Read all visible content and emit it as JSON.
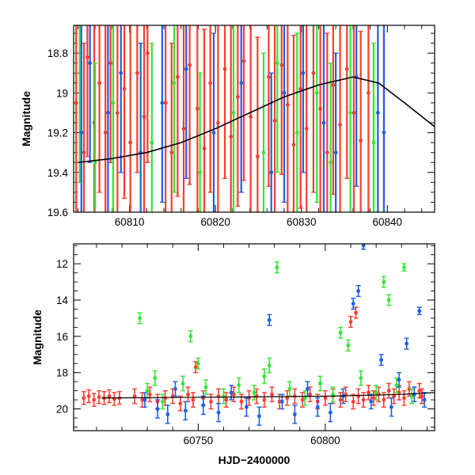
{
  "colors": {
    "red": "#ff3b2f",
    "green": "#33e633",
    "blue": "#1a5fe8",
    "model": "#000000"
  },
  "chart_data": [
    {
      "id": "top",
      "type": "scatter",
      "title": "",
      "xlabel": "",
      "ylabel": "Magnitude",
      "xlim": [
        60803.5,
        60845.5
      ],
      "ylim": [
        19.6,
        18.66
      ],
      "y_inverted": true,
      "grid": false,
      "x_ticks": [
        60810,
        60820,
        60830,
        60840
      ],
      "x_tick_labels": [
        "60810",
        "60820",
        "60830",
        "60840"
      ],
      "y_ticks": [
        18.8,
        19.0,
        19.2,
        19.4,
        19.6
      ],
      "y_tick_labels": [
        "18.8",
        "19",
        "19.2",
        "19.4",
        "19.6"
      ],
      "series": [
        {
          "color": "red",
          "points": [
            [
              60803.8,
              19.05,
              0.6
            ],
            [
              60804.7,
              19.3,
              0.55
            ],
            [
              60805.1,
              18.82,
              0.5
            ],
            [
              60805.9,
              19.15,
              0.6
            ],
            [
              60806.5,
              18.95,
              0.55
            ],
            [
              60807.2,
              19.2,
              0.6
            ],
            [
              60807.8,
              18.85,
              0.5
            ],
            [
              60808.6,
              19.1,
              0.6
            ],
            [
              60809.4,
              18.98,
              0.55
            ],
            [
              60810.1,
              19.25,
              0.6
            ],
            [
              60810.9,
              18.9,
              0.5
            ],
            [
              60811.7,
              19.12,
              0.6
            ],
            [
              60812.1,
              18.8,
              0.55
            ],
            [
              60814.2,
              19.05,
              0.6
            ],
            [
              60814.9,
              19.3,
              0.55
            ],
            [
              60815.6,
              18.92,
              0.6
            ],
            [
              60816.3,
              19.18,
              0.55
            ],
            [
              60817.0,
              18.86,
              0.6
            ],
            [
              60817.9,
              19.08,
              0.55
            ],
            [
              60818.7,
              19.28,
              0.6
            ],
            [
              60819.4,
              18.95,
              0.55
            ],
            [
              60820.3,
              19.15,
              0.6
            ],
            [
              60821.1,
              18.88,
              0.55
            ],
            [
              60821.8,
              19.22,
              0.6
            ],
            [
              60822.6,
              19.02,
              0.55
            ],
            [
              60823.3,
              18.84,
              0.6
            ],
            [
              60824.1,
              19.12,
              0.55
            ],
            [
              60824.9,
              19.32,
              0.6
            ],
            [
              60826.2,
              18.92,
              0.55
            ],
            [
              60826.9,
              19.14,
              0.6
            ],
            [
              60827.7,
              18.86,
              0.55
            ],
            [
              60828.4,
              19.06,
              0.6
            ],
            [
              60829.1,
              19.26,
              0.55
            ],
            [
              60829.9,
              18.98,
              0.6
            ],
            [
              60830.6,
              19.18,
              0.55
            ],
            [
              60831.4,
              18.9,
              0.6
            ],
            [
              60832.2,
              19.08,
              0.55
            ],
            [
              60833.0,
              19.3,
              0.6
            ],
            [
              60833.7,
              18.96,
              0.55
            ],
            [
              60834.5,
              19.16,
              0.6
            ],
            [
              60835.3,
              18.88,
              0.55
            ],
            [
              60836.1,
              19.1,
              0.6
            ],
            [
              60836.9,
              19.24,
              0.55
            ],
            [
              60837.8,
              19.0,
              0.6
            ]
          ]
        },
        {
          "color": "green",
          "points": [
            [
              60804.2,
              18.9,
              0.55
            ],
            [
              60806.0,
              19.35,
              0.5
            ],
            [
              60808.1,
              19.05,
              0.55
            ],
            [
              60812.6,
              19.25,
              0.5
            ],
            [
              60815.2,
              18.95,
              0.55
            ],
            [
              60818.2,
              19.4,
              0.5
            ],
            [
              60822.1,
              19.1,
              0.55
            ],
            [
              60825.6,
              19.3,
              0.5
            ],
            [
              60827.2,
              18.85,
              0.55
            ],
            [
              60829.5,
              19.2,
              0.5
            ],
            [
              60831.8,
              19.0,
              0.55
            ],
            [
              60833.4,
              19.35,
              0.5
            ],
            [
              60835.7,
              19.1,
              0.55
            ],
            [
              60838.4,
              19.25,
              0.5
            ]
          ]
        },
        {
          "color": "blue",
          "points": [
            [
              60804.4,
              19.2,
              0.55
            ],
            [
              60805.4,
              18.85,
              0.5
            ],
            [
              60807.5,
              19.1,
              0.55
            ],
            [
              60809.0,
              18.9,
              0.5
            ],
            [
              60811.3,
              19.3,
              0.55
            ],
            [
              60813.8,
              19.05,
              0.5
            ],
            [
              60816.6,
              18.88,
              0.55
            ],
            [
              60819.8,
              19.2,
              0.5
            ],
            [
              60823.0,
              18.95,
              0.55
            ],
            [
              60826.5,
              19.4,
              0.5
            ],
            [
              60828.0,
              19.0,
              0.55
            ],
            [
              60830.2,
              18.9,
              0.5
            ],
            [
              60832.6,
              19.15,
              0.55
            ],
            [
              60834.0,
              19.3,
              0.5
            ],
            [
              60836.4,
              18.92,
              0.55
            ],
            [
              60838.9,
              19.1,
              0.5
            ],
            [
              60839.6,
              19.2,
              0.55
            ]
          ]
        }
      ],
      "model_curve": {
        "color": "model",
        "points": [
          [
            60804,
            19.35
          ],
          [
            60808,
            19.33
          ],
          [
            60812,
            19.3
          ],
          [
            60816,
            19.25
          ],
          [
            60820,
            19.18
          ],
          [
            60824,
            19.1
          ],
          [
            60828,
            19.02
          ],
          [
            60832,
            18.96
          ],
          [
            60836,
            18.92
          ],
          [
            60839,
            18.95
          ],
          [
            60842,
            19.05
          ],
          [
            60845.5,
            19.17
          ]
        ]
      }
    },
    {
      "id": "bottom",
      "type": "scatter",
      "title": "",
      "xlabel": "HJD−2400000",
      "ylabel": "Magnitude",
      "xlim": [
        60701,
        60843
      ],
      "ylim": [
        21.2,
        10.9
      ],
      "y_inverted": true,
      "grid": false,
      "x_ticks": [
        60750,
        60800
      ],
      "x_tick_labels": [
        "60750",
        "60800"
      ],
      "y_ticks": [
        12,
        14,
        16,
        18,
        20
      ],
      "y_tick_labels": [
        "12",
        "14",
        "16",
        "18",
        "20"
      ],
      "series": [
        {
          "color": "red",
          "points": [
            [
              60705,
              19.4,
              0.35
            ],
            [
              60707,
              19.3,
              0.35
            ],
            [
              60709,
              19.5,
              0.35
            ],
            [
              60711,
              19.35,
              0.35
            ],
            [
              60713,
              19.4,
              0.35
            ],
            [
              60715,
              19.3,
              0.35
            ],
            [
              60717,
              19.45,
              0.35
            ],
            [
              60719,
              19.4,
              0.35
            ],
            [
              60725,
              19.3,
              0.4
            ],
            [
              60728,
              19.5,
              0.4
            ],
            [
              60731,
              19.2,
              0.4
            ],
            [
              60734,
              19.6,
              0.4
            ],
            [
              60737,
              19.4,
              0.4
            ],
            [
              60740,
              19.3,
              0.4
            ],
            [
              60743,
              19.7,
              0.4
            ],
            [
              60746,
              19.2,
              0.4
            ],
            [
              60748,
              19.5,
              0.4
            ],
            [
              60749,
              17.7,
              0.3
            ],
            [
              60752,
              19.4,
              0.4
            ],
            [
              60755,
              19.6,
              0.4
            ],
            [
              60758,
              19.3,
              0.4
            ],
            [
              60761,
              19.5,
              0.4
            ],
            [
              60764,
              19.2,
              0.4
            ],
            [
              60767,
              19.6,
              0.4
            ],
            [
              60770,
              19.4,
              0.4
            ],
            [
              60773,
              19.3,
              0.4
            ],
            [
              60776,
              19.5,
              0.4
            ],
            [
              60779,
              19.2,
              0.4
            ],
            [
              60782,
              19.6,
              0.4
            ],
            [
              60785,
              19.4,
              0.4
            ],
            [
              60788,
              19.3,
              0.4
            ],
            [
              60791,
              19.5,
              0.4
            ],
            [
              60794,
              19.2,
              0.4
            ],
            [
              60797,
              19.6,
              0.4
            ],
            [
              60800,
              19.4,
              0.4
            ],
            [
              60803,
              19.3,
              0.4
            ],
            [
              60806,
              19.5,
              0.4
            ],
            [
              60808,
              19.2,
              0.4
            ],
            [
              60810,
              15.2,
              0.3
            ],
            [
              60811,
              19.6,
              0.4
            ],
            [
              60812,
              14.7,
              0.3
            ],
            [
              60813,
              19.3,
              0.4
            ],
            [
              60815,
              19.5,
              0.4
            ],
            [
              60817,
              19.1,
              0.4
            ],
            [
              60819,
              19.4,
              0.4
            ],
            [
              60821,
              19.2,
              0.4
            ],
            [
              60823,
              19.5,
              0.4
            ],
            [
              60825,
              19.0,
              0.4
            ],
            [
              60827,
              19.3,
              0.4
            ],
            [
              60829,
              19.1,
              0.4
            ],
            [
              60831,
              19.4,
              0.4
            ],
            [
              60833,
              18.9,
              0.4
            ],
            [
              60835,
              19.2,
              0.4
            ],
            [
              60837,
              19.0,
              0.4
            ],
            [
              60838,
              19.3,
              0.4
            ]
          ]
        },
        {
          "color": "green",
          "points": [
            [
              60727,
              15.0,
              0.3
            ],
            [
              60730,
              19.0,
              0.4
            ],
            [
              60733,
              18.3,
              0.4
            ],
            [
              60736,
              19.6,
              0.4
            ],
            [
              60744,
              18.6,
              0.4
            ],
            [
              60747,
              16.0,
              0.3
            ],
            [
              60750,
              17.5,
              0.3
            ],
            [
              60753,
              18.8,
              0.4
            ],
            [
              60760,
              19.3,
              0.4
            ],
            [
              60766,
              18.7,
              0.4
            ],
            [
              60772,
              19.1,
              0.4
            ],
            [
              60776,
              18.2,
              0.4
            ],
            [
              60778,
              17.6,
              0.4
            ],
            [
              60781,
              12.2,
              0.3
            ],
            [
              60786,
              18.9,
              0.4
            ],
            [
              60792,
              19.4,
              0.4
            ],
            [
              60798,
              18.6,
              0.4
            ],
            [
              60803,
              19.2,
              0.4
            ],
            [
              60806,
              15.8,
              0.3
            ],
            [
              60809,
              16.5,
              0.3
            ],
            [
              60814,
              18.3,
              0.4
            ],
            [
              60820,
              19.1,
              0.4
            ],
            [
              60823,
              13.0,
              0.3
            ],
            [
              60825,
              14.0,
              0.3
            ],
            [
              60828,
              18.7,
              0.4
            ],
            [
              60831,
              12.2,
              0.2
            ],
            [
              60834,
              19.3,
              0.4
            ]
          ]
        },
        {
          "color": "blue",
          "points": [
            [
              60729,
              19.5,
              0.4
            ],
            [
              60734,
              20.0,
              0.5
            ],
            [
              60738,
              20.3,
              0.5
            ],
            [
              60741,
              18.9,
              0.4
            ],
            [
              60745,
              20.1,
              0.5
            ],
            [
              60752,
              19.8,
              0.5
            ],
            [
              60758,
              20.2,
              0.5
            ],
            [
              60763,
              19.1,
              0.4
            ],
            [
              60769,
              19.9,
              0.5
            ],
            [
              60774,
              20.4,
              0.5
            ],
            [
              60778,
              15.1,
              0.3
            ],
            [
              60783,
              19.6,
              0.4
            ],
            [
              60788,
              20.3,
              0.5
            ],
            [
              60793,
              18.9,
              0.4
            ],
            [
              60797,
              19.9,
              0.5
            ],
            [
              60802,
              20.2,
              0.5
            ],
            [
              60807,
              19.3,
              0.4
            ],
            [
              60811,
              14.2,
              0.3
            ],
            [
              60813,
              13.5,
              0.3
            ],
            [
              60815,
              11.0,
              0.2
            ],
            [
              60818,
              19.6,
              0.4
            ],
            [
              60822,
              17.3,
              0.3
            ],
            [
              60826,
              19.9,
              0.5
            ],
            [
              60829,
              18.4,
              0.4
            ],
            [
              60832,
              16.4,
              0.3
            ],
            [
              60835,
              19.2,
              0.4
            ],
            [
              60837,
              14.6,
              0.2
            ],
            [
              60839,
              19.5,
              0.4
            ]
          ]
        }
      ],
      "model_curve": {
        "color": "model",
        "points": [
          [
            60712,
            19.4
          ],
          [
            60760,
            19.35
          ],
          [
            60800,
            19.3
          ],
          [
            60830,
            19.2
          ],
          [
            60843,
            19.1
          ]
        ]
      }
    }
  ]
}
